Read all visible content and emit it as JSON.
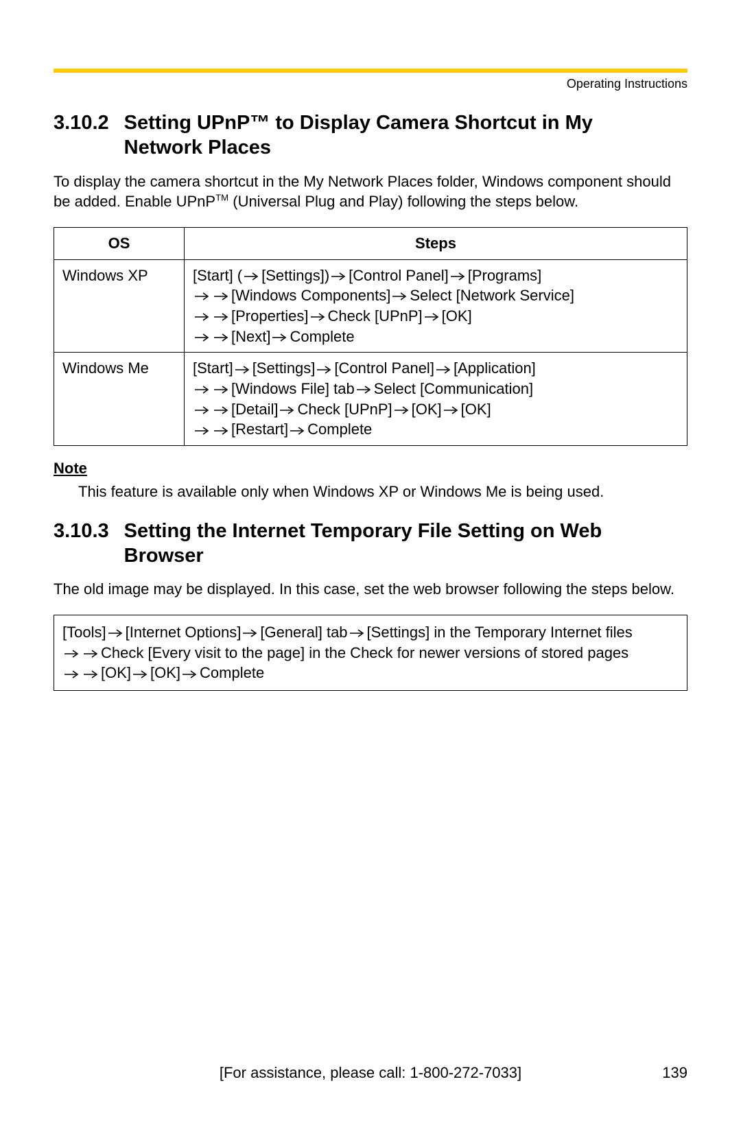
{
  "colors": {
    "rule_color": "#fbcb0a",
    "text_color": "#000000",
    "background": "#ffffff",
    "border_color": "#000000"
  },
  "header": {
    "running_head": "Operating Instructions"
  },
  "section1": {
    "number": "3.10.2",
    "title_line1": "Setting UPnP™ to Display Camera Shortcut in My",
    "title_line2": "Network Places",
    "intro_part1": "To display the camera shortcut in the My Network Places folder, Windows component should be added. Enable UPnP",
    "intro_tm": "TM",
    "intro_part2": " (Universal Plug and Play) following the steps below."
  },
  "table": {
    "columns": [
      "OS",
      "Steps"
    ],
    "rows": [
      {
        "os": "Windows XP",
        "steps": [
          [
            "[Start] (",
            "[Settings])",
            "[Control Panel]",
            "[Programs]"
          ],
          [
            "",
            "[Windows Components]",
            "Select [Network Service]"
          ],
          [
            "",
            "[Properties]",
            "Check [UPnP]",
            "[OK]"
          ],
          [
            "",
            "[Next]",
            "Complete"
          ]
        ]
      },
      {
        "os": "Windows Me",
        "steps": [
          [
            "[Start]",
            "[Settings]",
            "[Control Panel]",
            "[Application]"
          ],
          [
            "",
            "[Windows File] tab",
            "Select [Communication]"
          ],
          [
            "",
            "[Detail]",
            "Check [UPnP]",
            "[OK]",
            "[OK]"
          ],
          [
            "",
            "[Restart]",
            "Complete"
          ]
        ]
      }
    ]
  },
  "note": {
    "label": "Note",
    "text": "This feature is available only when Windows XP or Windows Me is being used."
  },
  "section2": {
    "number": "3.10.3",
    "title_line1": "Setting the Internet Temporary File Setting on Web",
    "title_line2": "Browser",
    "intro": "The old image may be displayed. In this case, set the web browser following the steps below.",
    "box_steps": [
      [
        "[Tools]",
        "[Internet Options]",
        "[General] tab",
        "[Settings] in the Temporary Internet files"
      ],
      [
        "",
        "Check [Every visit to the page] in the Check for newer versions of stored pages"
      ],
      [
        "",
        "[OK]",
        "[OK]",
        "Complete"
      ]
    ]
  },
  "footer": {
    "assistance": "[For assistance, please call: 1-800-272-7033]",
    "page_number": "139"
  },
  "arrow_svg": {
    "width": 24,
    "height": 12,
    "stroke": "#000000",
    "stroke_width": 1.6
  }
}
